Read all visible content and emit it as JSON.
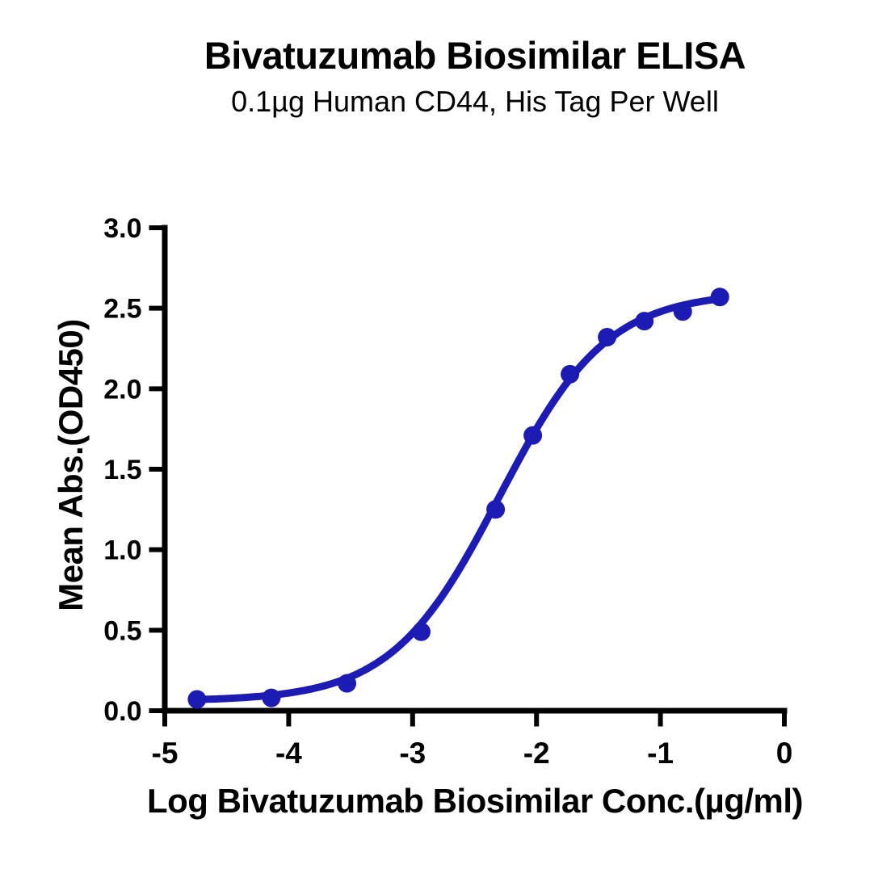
{
  "chart_data": {
    "type": "scatter",
    "title": "Bivatuzumab Biosimilar ELISA",
    "subtitle": "0.1µg Human CD44, His Tag Per Well",
    "x_axis": {
      "label": "Log Bivatuzumab Biosimilar Conc.(µg/ml)",
      "range": [
        -5,
        0
      ],
      "ticks": [
        {
          "v": -5,
          "label": "-5"
        },
        {
          "v": -4,
          "label": "-4"
        },
        {
          "v": -3,
          "label": "-3"
        },
        {
          "v": -2,
          "label": "-2"
        },
        {
          "v": -1,
          "label": "-1"
        },
        {
          "v": 0,
          "label": "0"
        }
      ]
    },
    "y_axis": {
      "label": "Mean Abs.(OD450)",
      "range": [
        0,
        3
      ],
      "ticks": [
        {
          "v": 0.0,
          "label": "0.0"
        },
        {
          "v": 0.5,
          "label": "0.5"
        },
        {
          "v": 1.0,
          "label": "1.0"
        },
        {
          "v": 1.5,
          "label": "1.5"
        },
        {
          "v": 2.0,
          "label": "2.0"
        },
        {
          "v": 2.5,
          "label": "2.5"
        },
        {
          "v": 3.0,
          "label": "3.0"
        }
      ]
    },
    "points": [
      {
        "x": -4.74,
        "y": 0.07
      },
      {
        "x": -4.14,
        "y": 0.08
      },
      {
        "x": -3.53,
        "y": 0.17
      },
      {
        "x": -2.93,
        "y": 0.49
      },
      {
        "x": -2.33,
        "y": 1.25
      },
      {
        "x": -2.03,
        "y": 1.71
      },
      {
        "x": -1.73,
        "y": 2.09
      },
      {
        "x": -1.43,
        "y": 2.32
      },
      {
        "x": -1.13,
        "y": 2.42
      },
      {
        "x": -0.82,
        "y": 2.48
      },
      {
        "x": -0.52,
        "y": 2.57
      }
    ],
    "fit": {
      "model": "four_parameter_logistic",
      "bottom": 0.06,
      "top": 2.6,
      "log_ec50": -2.3,
      "hill_slope": 1.0,
      "x_start": -4.74,
      "x_end": -0.52
    },
    "grid": false,
    "legend": null,
    "colors": {
      "curve": "#1C1CB4",
      "marker": "#1C1CB4",
      "axis": "#000000",
      "text": "#000000",
      "background": "#FFFFFF"
    }
  }
}
